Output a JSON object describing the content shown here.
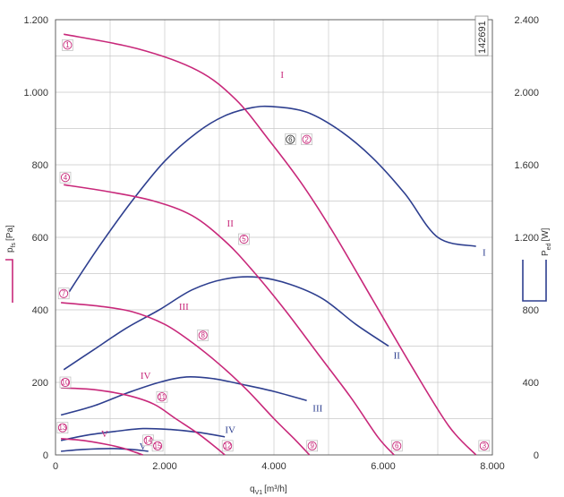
{
  "chart_data": {
    "type": "line",
    "title": "",
    "code_label": "142691",
    "xlabel": "qV1 [m3/h]",
    "xlabel_main": "q",
    "xlabel_sub": "V1",
    "xlabel_unit": "[m³/h]",
    "ylabel_left": "psf [Pa]",
    "ylabel_left_main": "p",
    "ylabel_left_sub": "fs",
    "ylabel_left_unit": "[Pa]",
    "ylabel_right": "Ped [W]",
    "ylabel_right_main": "P",
    "ylabel_right_sub": "ed",
    "ylabel_right_unit": "[W]",
    "xlim": [
      0,
      8000
    ],
    "ylim_left": [
      0,
      1200
    ],
    "ylim_right": [
      0,
      2400
    ],
    "x_ticks": [
      0,
      2000,
      4000,
      6000,
      8000
    ],
    "x_tick_labels": [
      "0",
      "2.000",
      "4.000",
      "6.000",
      "8.000"
    ],
    "y_left_ticks": [
      0,
      200,
      400,
      600,
      800,
      1000,
      1200
    ],
    "y_left_tick_labels": [
      "0",
      "200",
      "400",
      "600",
      "800",
      "1.000",
      "1.200"
    ],
    "y_right_ticks": [
      0,
      400,
      800,
      1200,
      1600,
      2000,
      2400
    ],
    "y_right_tick_labels": [
      "0",
      "400",
      "800",
      "1.200",
      "1.600",
      "2.000",
      "2.400"
    ],
    "grid": true,
    "colors": {
      "pressure": "#c8287a",
      "power": "#2e3f8f",
      "grid": "#c8c8c8",
      "axis": "#555555"
    },
    "pressure_series": [
      {
        "name": "I",
        "axis": "left",
        "x": [
          150,
          1500,
          2600,
          3300,
          3900,
          4500,
          5100,
          5800,
          6500,
          7200,
          7700
        ],
        "y": [
          1160,
          1120,
          1060,
          980,
          870,
          750,
          610,
          430,
          250,
          80,
          0
        ]
      },
      {
        "name": "II",
        "axis": "left",
        "x": [
          150,
          1000,
          1800,
          2500,
          3100,
          3600,
          4200,
          4800,
          5400,
          5900,
          6200
        ],
        "y": [
          745,
          725,
          700,
          660,
          590,
          510,
          400,
          280,
          160,
          50,
          0
        ]
      },
      {
        "name": "III",
        "axis": "left",
        "x": [
          100,
          800,
          1400,
          2000,
          2500,
          3000,
          3500,
          4000,
          4400,
          4650
        ],
        "y": [
          420,
          410,
          395,
          360,
          310,
          250,
          180,
          100,
          40,
          0
        ]
      },
      {
        "name": "IV",
        "axis": "left",
        "x": [
          100,
          700,
          1300,
          1800,
          2200,
          2600,
          2900,
          3100
        ],
        "y": [
          185,
          180,
          165,
          140,
          100,
          60,
          25,
          0
        ]
      },
      {
        "name": "V",
        "axis": "left",
        "x": [
          100,
          500,
          900,
          1200,
          1450,
          1600
        ],
        "y": [
          45,
          40,
          30,
          20,
          8,
          0
        ]
      }
    ],
    "power_series": [
      {
        "name": "I",
        "axis": "right",
        "x": [
          250,
          800,
          1400,
          2000,
          2600,
          3100,
          3600,
          4000,
          4600,
          5200,
          5800,
          6400,
          7000,
          7700
        ],
        "y": [
          900,
          1150,
          1400,
          1620,
          1780,
          1870,
          1915,
          1920,
          1890,
          1790,
          1640,
          1440,
          1200,
          1150
        ]
      },
      {
        "name": "II",
        "axis": "right",
        "x": [
          150,
          700,
          1300,
          1900,
          2500,
          3100,
          3700,
          4300,
          4900,
          5500,
          6100
        ],
        "y": [
          470,
          580,
          700,
          800,
          910,
          970,
          980,
          940,
          860,
          720,
          600
        ]
      },
      {
        "name": "III",
        "axis": "right",
        "x": [
          100,
          700,
          1300,
          1900,
          2400,
          2900,
          3400,
          4000,
          4600
        ],
        "y": [
          220,
          270,
          340,
          400,
          430,
          420,
          390,
          350,
          300
        ]
      },
      {
        "name": "IV",
        "axis": "right",
        "x": [
          100,
          600,
          1100,
          1600,
          2100,
          2600,
          3100
        ],
        "y": [
          80,
          110,
          130,
          145,
          140,
          125,
          100
        ]
      },
      {
        "name": "V",
        "axis": "right",
        "x": [
          100,
          500,
          1000,
          1400,
          1700
        ],
        "y": [
          20,
          30,
          35,
          30,
          20
        ]
      }
    ],
    "curve_labels": [
      {
        "text": "I",
        "x": 4150,
        "y": 1040,
        "color": "#c8287a"
      },
      {
        "text": "II",
        "x": 3200,
        "y": 630,
        "color": "#c8287a"
      },
      {
        "text": "III",
        "x": 2350,
        "y": 400,
        "color": "#c8287a"
      },
      {
        "text": "IV",
        "x": 1650,
        "y": 210,
        "color": "#c8287a"
      },
      {
        "text": "V",
        "x": 900,
        "y": 50,
        "color": "#c8287a"
      },
      {
        "text": "I",
        "x": 7850,
        "y": 1100,
        "color": "#2e3f8f",
        "axis": "right"
      },
      {
        "text": "II",
        "x": 6250,
        "y": 530,
        "color": "#2e3f8f",
        "axis": "right"
      },
      {
        "text": "III",
        "x": 4800,
        "y": 240,
        "color": "#2e3f8f",
        "axis": "right"
      },
      {
        "text": "IV",
        "x": 3200,
        "y": 120,
        "color": "#2e3f8f",
        "axis": "right"
      },
      {
        "text": "V",
        "x": 1600,
        "y": 30,
        "color": "#2e3f8f",
        "axis": "right"
      }
    ],
    "point_markers": [
      {
        "text": "1",
        "x": 220,
        "y": 1130,
        "shape": "circle",
        "color": "#c8287a"
      },
      {
        "text": "2",
        "x": 4600,
        "y": 870,
        "shape": "circle",
        "color": "#c8287a"
      },
      {
        "text": "3",
        "x": 7850,
        "y": 25,
        "shape": "circle",
        "color": "#c8287a"
      },
      {
        "text": "4",
        "x": 180,
        "y": 765,
        "shape": "circle",
        "color": "#c8287a"
      },
      {
        "text": "5",
        "x": 3450,
        "y": 595,
        "shape": "circle",
        "color": "#c8287a"
      },
      {
        "text": "6",
        "x": 6250,
        "y": 25,
        "shape": "circle",
        "color": "#c8287a"
      },
      {
        "text": "7",
        "x": 150,
        "y": 445,
        "shape": "circle",
        "color": "#c8287a"
      },
      {
        "text": "8",
        "x": 2700,
        "y": 330,
        "shape": "circle",
        "color": "#c8287a"
      },
      {
        "text": "9",
        "x": 4700,
        "y": 25,
        "shape": "circle",
        "color": "#c8287a"
      },
      {
        "text": "10",
        "x": 180,
        "y": 200,
        "shape": "circle",
        "color": "#c8287a"
      },
      {
        "text": "11",
        "x": 1950,
        "y": 160,
        "shape": "circle",
        "color": "#c8287a"
      },
      {
        "text": "12",
        "x": 3150,
        "y": 25,
        "shape": "circle",
        "color": "#c8287a"
      },
      {
        "text": "13",
        "x": 130,
        "y": 75,
        "shape": "circle",
        "color": "#c8287a"
      },
      {
        "text": "14",
        "x": 1700,
        "y": 40,
        "shape": "circle",
        "color": "#c8287a"
      },
      {
        "text": "15",
        "x": 1870,
        "y": 25,
        "shape": "circle",
        "color": "#c8287a"
      },
      {
        "text": "6",
        "x": 4300,
        "y": 870,
        "shape": "circle",
        "color": "#333333"
      }
    ]
  }
}
